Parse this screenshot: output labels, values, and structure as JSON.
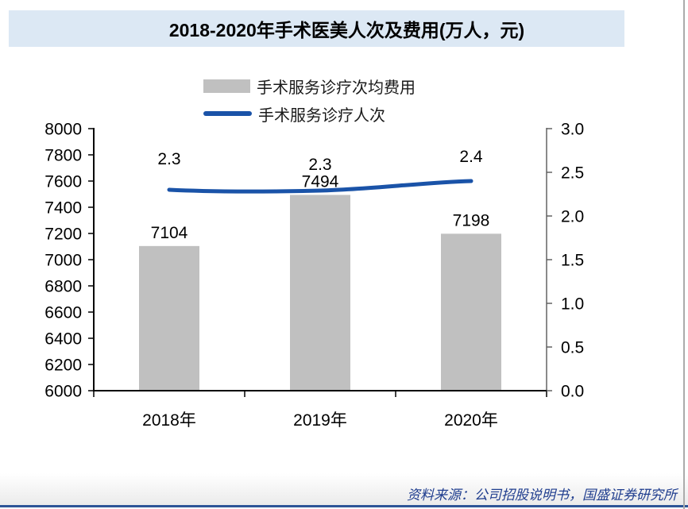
{
  "title": {
    "text": "2018-2020年手术医美人次及费用(万人，元)"
  },
  "title_bg": "#DCE8F4",
  "legend": [
    {
      "label": "手术服务诊疗次均费用",
      "type": "bar",
      "color": "#C0C0C0"
    },
    {
      "label": "手术服务诊疗人次",
      "type": "line",
      "color": "#1A53A8"
    }
  ],
  "chart_data": {
    "type": "bar",
    "title": "2018-2020年手术医美人次及费用(万人，元)",
    "categories": [
      "2018年",
      "2019年",
      "2020年"
    ],
    "series": [
      {
        "name": "手术服务诊疗次均费用",
        "type": "bar",
        "axis": "left",
        "values": [
          7104,
          7494,
          7198
        ],
        "labels": [
          "7104",
          "7494",
          "7198"
        ],
        "color": "#C0C0C0"
      },
      {
        "name": "手术服务诊疗人次",
        "type": "line",
        "axis": "right",
        "values": [
          2.3,
          2.3,
          2.4
        ],
        "labels": [
          "2.3",
          "2.3",
          "2.4"
        ],
        "color": "#1A53A8"
      }
    ],
    "left_axis": {
      "min": 6000,
      "max": 8000,
      "step": 200,
      "tick_labels": [
        "8000",
        "7800",
        "7600",
        "7400",
        "7200",
        "7000",
        "6800",
        "6600",
        "6400",
        "6200",
        "6000"
      ]
    },
    "right_axis": {
      "min": 0,
      "max": 3,
      "step": 0.5,
      "tick_labels": [
        "3.0",
        "2.5",
        "2.0",
        "1.5",
        "1.0",
        "0.5",
        "0.0"
      ]
    },
    "grid": false,
    "legend_position": "top"
  },
  "source": {
    "text": "资料来源：公司招股说明书，国盛证券研究所",
    "color": "#203E8F"
  },
  "bottom_rule_color": "#2E5597"
}
